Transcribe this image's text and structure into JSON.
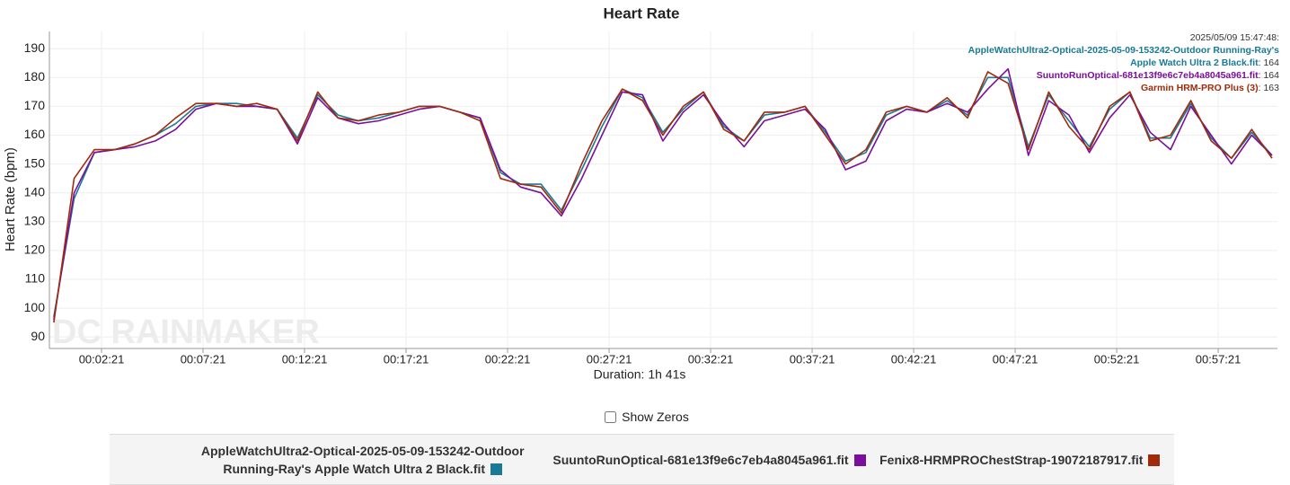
{
  "chart_data": {
    "type": "line",
    "title": "Heart Rate",
    "y_label": "Heart Rate (bpm)",
    "x_label": "Duration: 1h 41s",
    "watermark": "DC RAINMAKER",
    "xlim": [
      -13,
      3616
    ],
    "ylim": [
      86,
      196
    ],
    "xticks": [
      {
        "value": 141,
        "label": "00:02:21"
      },
      {
        "value": 441,
        "label": "00:07:21"
      },
      {
        "value": 741,
        "label": "00:12:21"
      },
      {
        "value": 1041,
        "label": "00:17:21"
      },
      {
        "value": 1341,
        "label": "00:22:21"
      },
      {
        "value": 1641,
        "label": "00:27:21"
      },
      {
        "value": 1941,
        "label": "00:32:21"
      },
      {
        "value": 2241,
        "label": "00:37:21"
      },
      {
        "value": 2541,
        "label": "00:42:21"
      },
      {
        "value": 2841,
        "label": "00:47:21"
      },
      {
        "value": 3141,
        "label": "00:52:21"
      },
      {
        "value": 3441,
        "label": "00:57:21"
      }
    ],
    "yticks": [
      90,
      100,
      110,
      120,
      130,
      140,
      150,
      160,
      170,
      180,
      190
    ],
    "grid": true,
    "x": [
      0,
      60,
      120,
      180,
      240,
      300,
      360,
      420,
      480,
      540,
      600,
      660,
      720,
      780,
      840,
      900,
      960,
      1020,
      1080,
      1140,
      1200,
      1260,
      1320,
      1380,
      1440,
      1500,
      1560,
      1620,
      1680,
      1740,
      1800,
      1860,
      1920,
      1980,
      2040,
      2100,
      2160,
      2220,
      2280,
      2340,
      2400,
      2460,
      2520,
      2580,
      2640,
      2700,
      2760,
      2820,
      2880,
      2940,
      3000,
      3060,
      3120,
      3180,
      3240,
      3300,
      3360,
      3420,
      3480,
      3540,
      3600
    ],
    "series": [
      {
        "name": "AppleWatchUltra2-Optical-2025-05-09-153242-Outdoor Running-Ray's Apple Watch Ultra 2 Black.fit",
        "color": "#1a7a96",
        "values": [
          97,
          138,
          154,
          155,
          157,
          160,
          164,
          170,
          171,
          171,
          170,
          169,
          159,
          174,
          167,
          165,
          166,
          168,
          170,
          170,
          168,
          166,
          147,
          143,
          143,
          134,
          148,
          163,
          176,
          173,
          161,
          169,
          175,
          163,
          158,
          167,
          168,
          170,
          161,
          151,
          154,
          167,
          170,
          168,
          172,
          167,
          180,
          180,
          156,
          174,
          165,
          156,
          169,
          175,
          159,
          159,
          171,
          159,
          152,
          161,
          153
        ]
      },
      {
        "name": "SuuntoRunOptical-681e13f9e6c7eb4a8045a961.fit",
        "color": "#7b0e9c",
        "values": [
          96,
          140,
          154,
          155,
          156,
          158,
          162,
          169,
          171,
          170,
          170,
          169,
          157,
          173,
          166,
          164,
          165,
          167,
          169,
          170,
          168,
          166,
          148,
          142,
          140,
          132,
          145,
          160,
          175,
          174,
          158,
          168,
          174,
          164,
          156,
          165,
          167,
          169,
          162,
          148,
          151,
          165,
          169,
          168,
          171,
          168,
          176,
          183,
          153,
          172,
          167,
          154,
          166,
          174,
          161,
          155,
          170,
          160,
          150,
          160,
          153
        ]
      },
      {
        "name": "Fenix8-HRMPROChestStrap-19072187917.fit",
        "color": "#a02a0a",
        "values": [
          95,
          145,
          155,
          155,
          157,
          160,
          166,
          171,
          171,
          170,
          171,
          169,
          158,
          175,
          166,
          165,
          167,
          168,
          170,
          170,
          168,
          165,
          145,
          143,
          142,
          133,
          150,
          165,
          176,
          172,
          160,
          170,
          175,
          162,
          158,
          168,
          168,
          170,
          160,
          150,
          155,
          168,
          170,
          168,
          173,
          166,
          182,
          178,
          155,
          175,
          163,
          155,
          170,
          175,
          158,
          160,
          172,
          158,
          152,
          162,
          152
        ]
      }
    ],
    "tooltip": {
      "time": "2025/05/09 15:47:48:",
      "items": [
        {
          "name": "AppleWatchUltra2-Optical-2025-05-09-153242-Outdoor Running-Ray's Apple Watch Ultra 2 Black.fit",
          "value": 164
        },
        {
          "name": "SuuntoRunOptical-681e13f9e6c7eb4a8045a961.fit",
          "value": 164
        },
        {
          "name": "Garmin HRM-PRO Plus (3)",
          "value": 163
        }
      ]
    },
    "show_zeros": "Show Zeros"
  }
}
